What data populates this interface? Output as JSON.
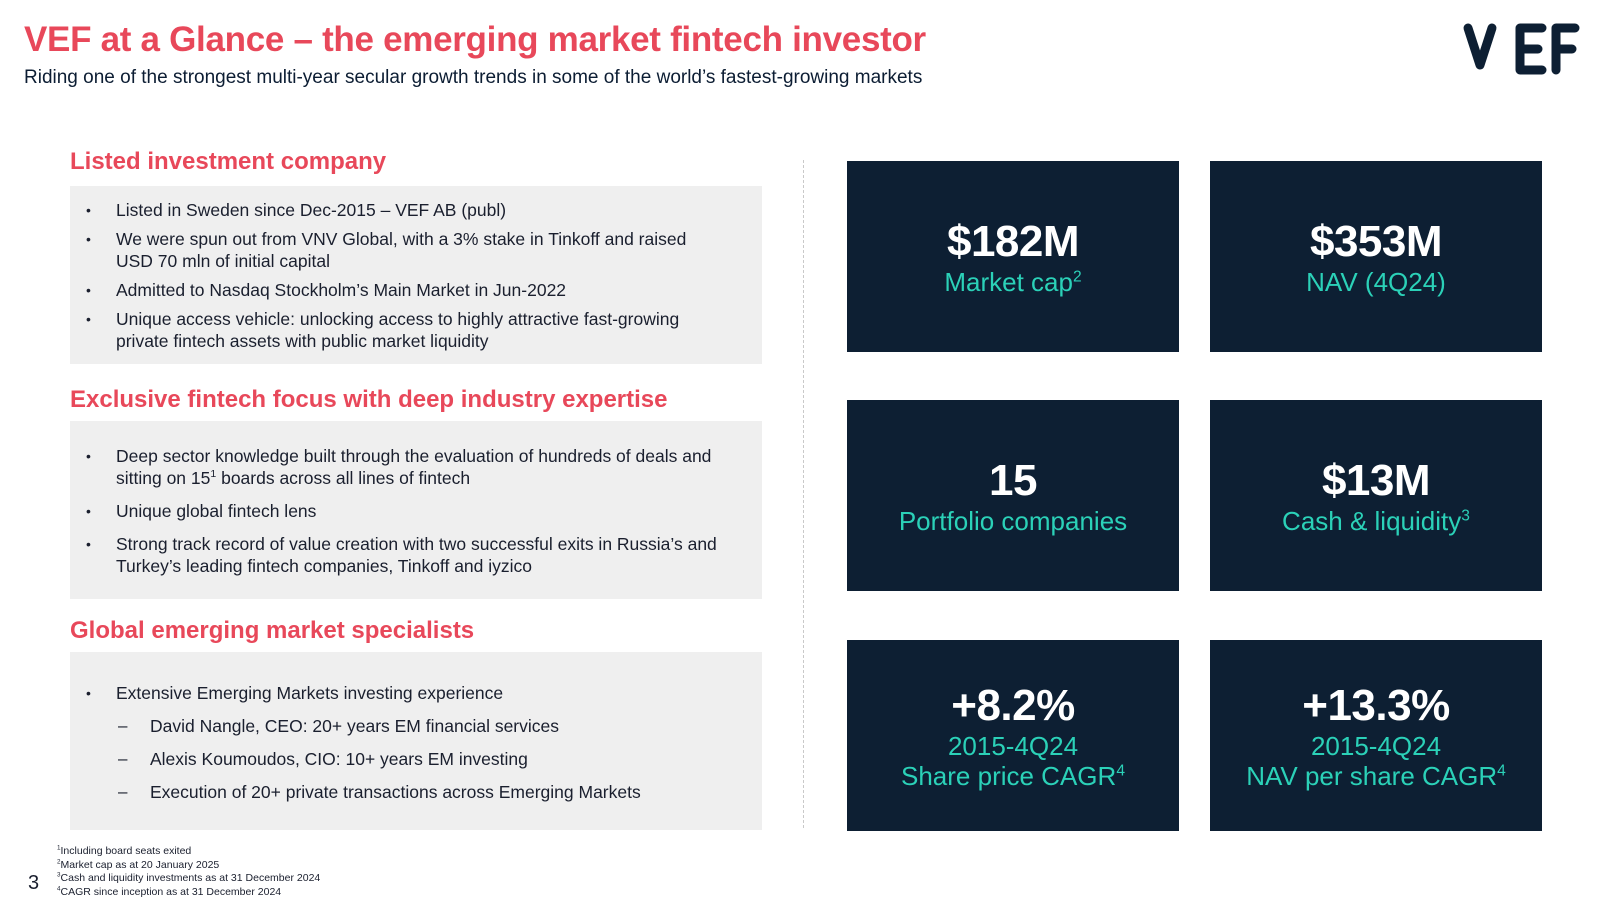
{
  "header": {
    "title": "VEF at a Glance – the emerging market fintech investor",
    "subtitle": "Riding one of the strongest multi-year secular growth trends in some of the world’s fastest-growing markets",
    "logo_text": "VEF"
  },
  "sections": [
    {
      "title": "Listed investment company",
      "bullets": [
        {
          "text": "Listed in Sweden since Dec-2015 – VEF AB (publ)",
          "marker": "•"
        },
        {
          "text": "We were spun out from VNV Global, with a 3% stake in Tinkoff and raised USD 70 mln of initial capital",
          "marker": "•"
        },
        {
          "text": "Admitted to Nasdaq Stockholm’s Main Market in Jun-2022",
          "marker": "•"
        },
        {
          "text": "Unique access vehicle: unlocking access to highly attractive fast-growing private fintech assets with public market liquidity",
          "marker": "•"
        }
      ]
    },
    {
      "title": "Exclusive fintech focus with deep industry expertise",
      "bullets": [
        {
          "text_a": "Deep sector knowledge built through the evaluation of hundreds of deals and sitting on 15",
          "sup": "1",
          "text_b": " boards across all lines of fintech",
          "marker": "•"
        },
        {
          "text": "Unique global fintech lens",
          "marker": "•"
        },
        {
          "text": "Strong track record of value creation with two successful exits in Russia’s and Turkey’s leading fintech companies, Tinkoff and iyzico",
          "marker": "•"
        }
      ]
    },
    {
      "title": "Global emerging market specialists",
      "bullets": [
        {
          "text": "Extensive Emerging Markets investing experience",
          "marker": "•"
        },
        {
          "text": "David Nangle, CEO: 20+ years EM financial services",
          "marker": "–"
        },
        {
          "text": "Alexis Koumoudos, CIO: 10+ years EM investing",
          "marker": "–"
        },
        {
          "text": "Execution of 20+ private transactions across Emerging Markets",
          "marker": "–"
        }
      ]
    }
  ],
  "tiles": [
    {
      "value": "$182M",
      "label": "Market cap",
      "sup": "2"
    },
    {
      "value": "$353M",
      "label": "NAV (4Q24)"
    },
    {
      "value": "15",
      "label": "Portfolio companies"
    },
    {
      "value": "$13M",
      "label": "Cash & liquidity",
      "sup": "3"
    },
    {
      "value": "+8.2%",
      "label_line1": "2015-4Q24",
      "label": "Share price CAGR",
      "sup": "4"
    },
    {
      "value": "+13.3%",
      "label_line1": "2015-4Q24",
      "label": "NAV per share CAGR",
      "sup": "4"
    }
  ],
  "footnotes": [
    {
      "num": "1",
      "text": "Including board seats exited"
    },
    {
      "num": "2",
      "text": "Market cap as at 20 January 2025"
    },
    {
      "num": "3",
      "text": "Cash and liquidity investments as at 31 December 2024"
    },
    {
      "num": "4",
      "text": "CAGR since inception as at 31 December 2024"
    }
  ],
  "page_number": "3",
  "colors": {
    "accent": "#e8485a",
    "tile_bg": "#0d1f33",
    "tile_label": "#2bd1b8",
    "panel_bg": "#efefef"
  }
}
